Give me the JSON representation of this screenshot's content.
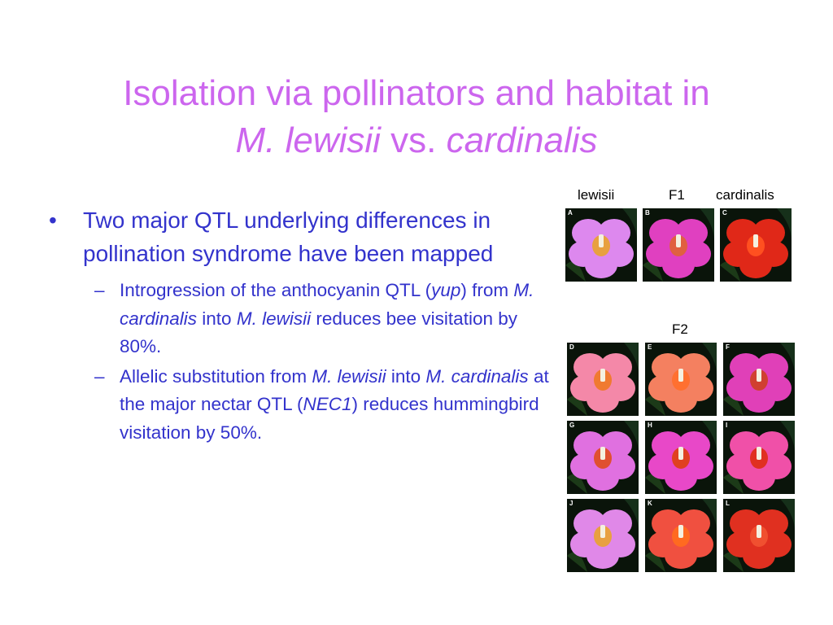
{
  "title": {
    "line1": "Isolation via pollinators and habitat in",
    "line2_species1": "M. lewisii",
    "line2_vs": "vs.",
    "line2_species2": "cardinalis"
  },
  "bullets": {
    "main": "Two major QTL underlying differences in pollination syndrome have been mapped",
    "sub1": {
      "text1": "Introgression of the anthocyanin QTL (",
      "gene": "yup",
      "text2": ")  from ",
      "from": "M. cardinalis",
      "text3": " into ",
      "into": "M. lewisii",
      "text4": " reduces bee visitation by 80%."
    },
    "sub2": {
      "text1": "Allelic substitution from ",
      "from": "M. lewisii",
      "text2": "  into ",
      "into": "M. cardinalis",
      "text3": " at the major nectar QTL (",
      "gene": "NEC1",
      "text4": ") reduces hummingbird visitation by 50%."
    }
  },
  "figure": {
    "top_labels": [
      "lewisii",
      "F1",
      "cardinalis"
    ],
    "f2_label": "F2",
    "top_panels": [
      {
        "letter": "A",
        "petal": "#dd88ee",
        "center": "#e8a040"
      },
      {
        "letter": "B",
        "petal": "#e040c0",
        "center": "#e06040"
      },
      {
        "letter": "C",
        "petal": "#e02818",
        "center": "#ff5020"
      }
    ],
    "f2_panels": [
      {
        "letter": "D",
        "petal": "#f488a8",
        "center": "#f07a30"
      },
      {
        "letter": "E",
        "petal": "#f48060",
        "center": "#ff7030"
      },
      {
        "letter": "F",
        "petal": "#e040b8",
        "center": "#d04030"
      },
      {
        "letter": "G",
        "petal": "#e070e0",
        "center": "#e05030"
      },
      {
        "letter": "H",
        "petal": "#e848c8",
        "center": "#e04020"
      },
      {
        "letter": "I",
        "petal": "#f050a8",
        "center": "#e03020"
      },
      {
        "letter": "J",
        "petal": "#e088e8",
        "center": "#e8a040"
      },
      {
        "letter": "K",
        "petal": "#f05040",
        "center": "#ff6a20"
      },
      {
        "letter": "L",
        "petal": "#e03020",
        "center": "#f05030"
      }
    ]
  }
}
